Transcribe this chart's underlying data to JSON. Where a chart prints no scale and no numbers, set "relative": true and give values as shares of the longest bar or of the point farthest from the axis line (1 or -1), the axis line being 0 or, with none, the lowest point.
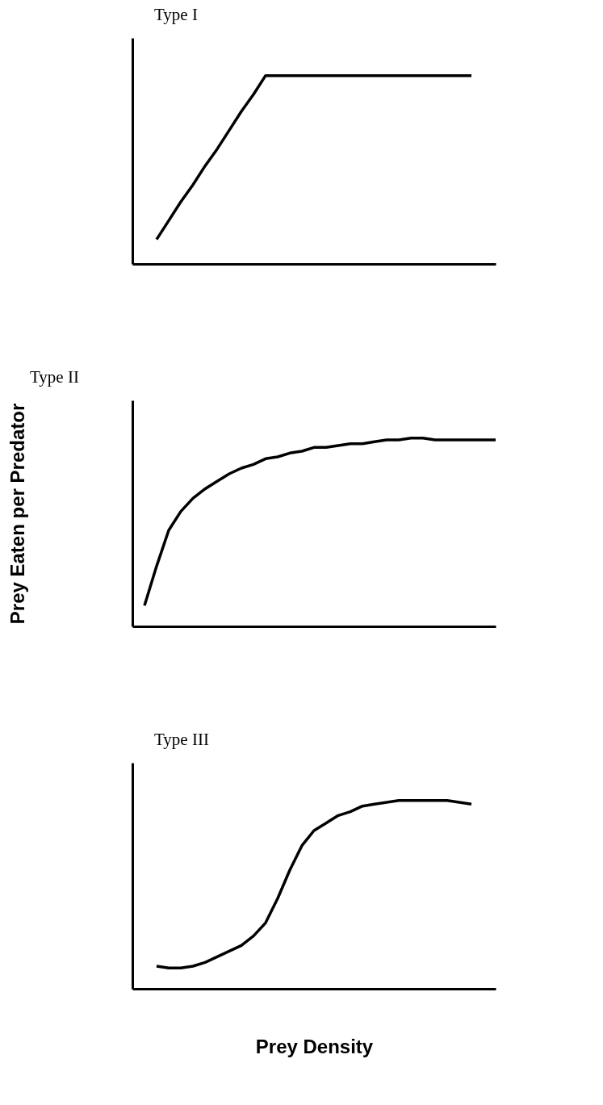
{
  "chart_data": [
    {
      "type": "line",
      "title": "Type I",
      "relative": true,
      "categories": [
        null,
        null,
        null,
        null,
        null,
        null,
        null,
        null,
        null,
        null,
        null,
        null,
        null,
        null,
        null,
        null,
        null,
        null,
        null,
        null,
        null,
        null,
        null,
        null,
        null,
        null,
        null,
        null,
        null,
        null,
        null
      ],
      "series": [
        {
          "color": "#000000",
          "values": [
            null,
            null,
            0.13,
            0.23,
            0.33,
            0.42,
            0.52,
            0.61,
            0.71,
            0.81,
            0.9,
            1,
            1,
            1,
            1,
            1,
            1,
            1,
            1,
            1,
            1,
            1,
            1,
            1,
            1,
            1,
            1,
            1,
            1,
            null,
            null
          ]
        }
      ]
    },
    {
      "type": "line",
      "title": "Type II",
      "ylabel": "Prey Eaten per Predator",
      "relative": true,
      "categories": [
        null,
        null,
        null,
        null,
        null,
        null,
        null,
        null,
        null,
        null,
        null,
        null,
        null,
        null,
        null,
        null,
        null,
        null,
        null,
        null,
        null,
        null,
        null,
        null,
        null,
        null,
        null,
        null,
        null,
        null,
        null
      ],
      "series": [
        {
          "color": "#000000",
          "values": [
            null,
            0.11,
            0.32,
            0.51,
            0.61,
            0.68,
            0.73,
            0.77,
            0.81,
            0.84,
            0.86,
            0.89,
            0.9,
            0.92,
            0.93,
            0.95,
            0.95,
            0.96,
            0.97,
            0.97,
            0.98,
            0.99,
            0.99,
            1,
            1,
            0.99,
            0.99,
            0.99,
            0.99,
            0.99,
            0.99
          ]
        }
      ]
    },
    {
      "type": "line",
      "title": "Type III",
      "xlabel": "Prey Density",
      "relative": true,
      "categories": [
        null,
        null,
        null,
        null,
        null,
        null,
        null,
        null,
        null,
        null,
        null,
        null,
        null,
        null,
        null,
        null,
        null,
        null,
        null,
        null,
        null,
        null,
        null,
        null,
        null,
        null,
        null,
        null,
        null,
        null,
        null
      ],
      "series": [
        {
          "color": "#000000",
          "values": [
            null,
            null,
            0.12,
            0.11,
            0.11,
            0.12,
            0.14,
            0.17,
            0.2,
            0.23,
            0.28,
            0.35,
            0.48,
            0.63,
            0.76,
            0.84,
            0.88,
            0.92,
            0.94,
            0.97,
            0.98,
            0.99,
            1,
            1,
            1,
            1,
            1,
            0.99,
            0.98,
            null,
            null
          ]
        }
      ]
    }
  ]
}
